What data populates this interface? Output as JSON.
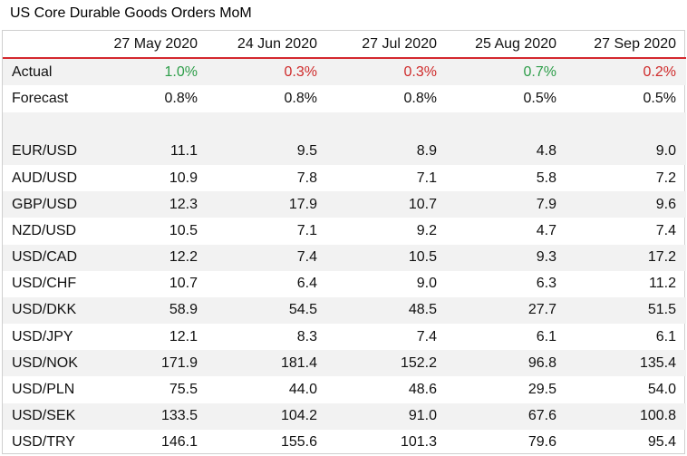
{
  "title": "US Core Durable Goods Orders MoM",
  "colors": {
    "positive": "#2e9e4a",
    "negative": "#cf2b2b",
    "header_rule": "#d4282e"
  },
  "columns": [
    "27 May 2020",
    "24 Jun 2020",
    "27 Jul 2020",
    "25 Aug 2020",
    "27 Sep 2020"
  ],
  "actual": {
    "label": "Actual",
    "values": [
      "1.0%",
      "0.3%",
      "0.3%",
      "0.7%",
      "0.2%"
    ],
    "direction": [
      "up",
      "down",
      "down",
      "up",
      "down"
    ]
  },
  "forecast": {
    "label": "Forecast",
    "values": [
      "0.8%",
      "0.8%",
      "0.8%",
      "0.5%",
      "0.5%"
    ]
  },
  "pairs": [
    {
      "label": "EUR/USD",
      "values": [
        "11.1",
        "9.5",
        "8.9",
        "4.8",
        "9.0"
      ]
    },
    {
      "label": "AUD/USD",
      "values": [
        "10.9",
        "7.8",
        "7.1",
        "5.8",
        "7.2"
      ]
    },
    {
      "label": "GBP/USD",
      "values": [
        "12.3",
        "17.9",
        "10.7",
        "7.9",
        "9.6"
      ]
    },
    {
      "label": "NZD/USD",
      "values": [
        "10.5",
        "7.1",
        "9.2",
        "4.7",
        "7.4"
      ]
    },
    {
      "label": "USD/CAD",
      "values": [
        "12.2",
        "7.4",
        "10.5",
        "9.3",
        "17.2"
      ]
    },
    {
      "label": "USD/CHF",
      "values": [
        "10.7",
        "6.4",
        "9.0",
        "6.3",
        "11.2"
      ]
    },
    {
      "label": "USD/DKK",
      "values": [
        "58.9",
        "54.5",
        "48.5",
        "27.7",
        "51.5"
      ]
    },
    {
      "label": "USD/JPY",
      "values": [
        "12.1",
        "8.3",
        "7.4",
        "6.1",
        "6.1"
      ]
    },
    {
      "label": "USD/NOK",
      "values": [
        "171.9",
        "181.4",
        "152.2",
        "96.8",
        "135.4"
      ]
    },
    {
      "label": "USD/PLN",
      "values": [
        "75.5",
        "44.0",
        "48.6",
        "29.5",
        "54.0"
      ]
    },
    {
      "label": "USD/SEK",
      "values": [
        "133.5",
        "104.2",
        "91.0",
        "67.6",
        "100.8"
      ]
    },
    {
      "label": "USD/TRY",
      "values": [
        "146.1",
        "155.6",
        "101.3",
        "79.6",
        "95.4"
      ]
    }
  ]
}
